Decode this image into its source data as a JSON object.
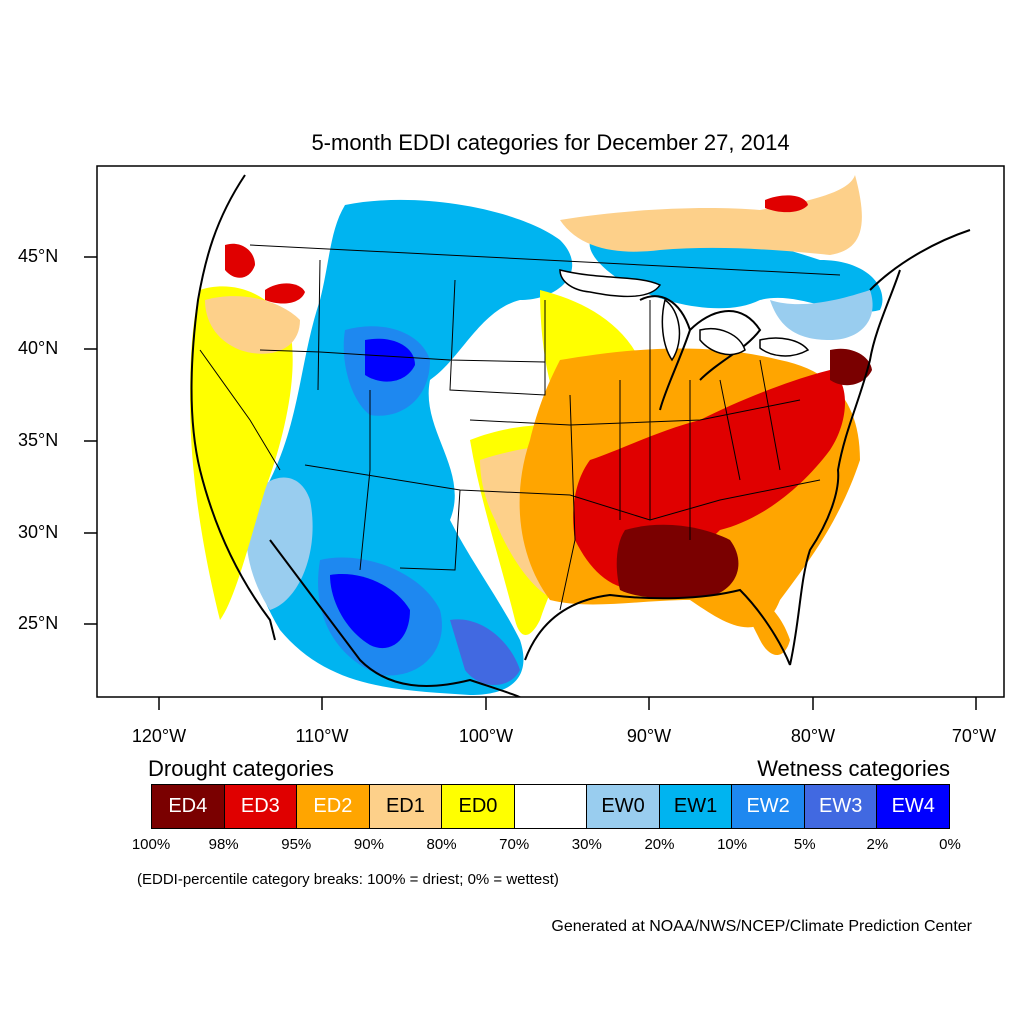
{
  "title": "5-month EDDI categories for December 27, 2014",
  "lat_labels": [
    "45°N",
    "40°N",
    "35°N",
    "30°N",
    "25°N"
  ],
  "lon_labels": [
    "120°W",
    "110°W",
    "100°W",
    "90°W",
    "80°W",
    "70°W"
  ],
  "legend": {
    "drought_heading": "Drought categories",
    "wetness_heading": "Wetness categories",
    "categories": [
      {
        "label": "ED4",
        "color": "#7a0000",
        "text_color": "#ffffff"
      },
      {
        "label": "ED3",
        "color": "#e00000",
        "text_color": "#ffffff"
      },
      {
        "label": "ED2",
        "color": "#ffa500",
        "text_color": "#ffffff"
      },
      {
        "label": "ED1",
        "color": "#fdd08a",
        "text_color": "#000000"
      },
      {
        "label": "ED0",
        "color": "#ffff00",
        "text_color": "#000000"
      },
      {
        "label": "",
        "color": "#ffffff",
        "text_color": "#000000"
      },
      {
        "label": "EW0",
        "color": "#99cdef",
        "text_color": "#000000"
      },
      {
        "label": "EW1",
        "color": "#00b4f0",
        "text_color": "#000000"
      },
      {
        "label": "EW2",
        "color": "#1e88f0",
        "text_color": "#ffffff"
      },
      {
        "label": "EW3",
        "color": "#4169e1",
        "text_color": "#ffffff"
      },
      {
        "label": "EW4",
        "color": "#0000ff",
        "text_color": "#ffffff"
      }
    ],
    "breaks": [
      "100%",
      "98%",
      "95%",
      "90%",
      "80%",
      "70%",
      "30%",
      "20%",
      "10%",
      "5%",
      "2%",
      "0%"
    ]
  },
  "note": "(EDDI-percentile category breaks: 100% = driest; 0% = wettest)",
  "credit": "Generated at NOAA/NWS/NCEP/Climate Prediction Center"
}
